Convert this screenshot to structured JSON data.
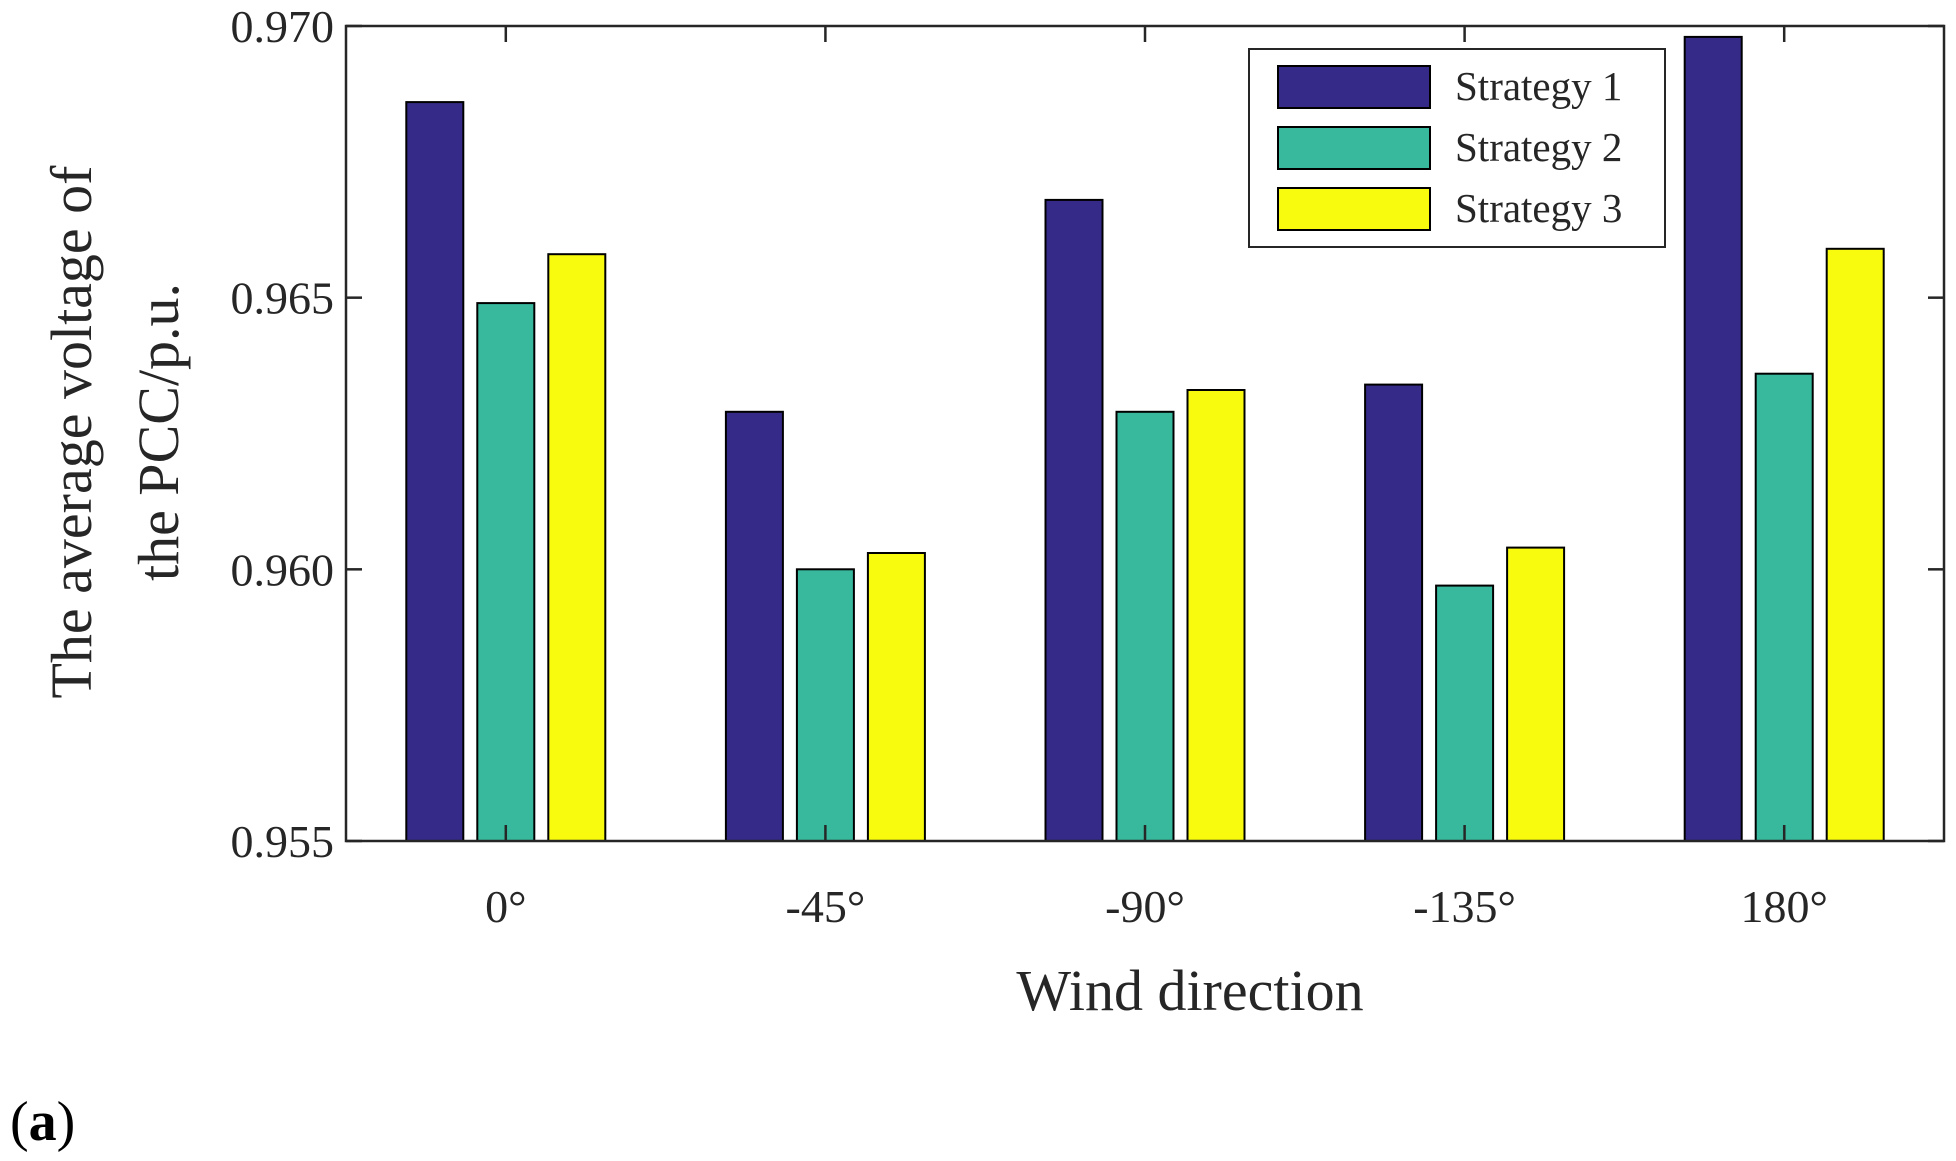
{
  "panel_label": {
    "open": "(",
    "letter": "a",
    "close": ")"
  },
  "chart_data": {
    "type": "bar",
    "title": "",
    "xlabel": "Wind direction",
    "ylabel_line1": "The average voltage of",
    "ylabel_line2": "the PCC/p.u.",
    "categories": [
      "0°",
      "-45°",
      "-90°",
      "-135°",
      "180°"
    ],
    "ylim": [
      0.955,
      0.97
    ],
    "yticks": [
      0.955,
      0.96,
      0.965,
      0.97
    ],
    "ytick_labels": [
      "0.955",
      "0.960",
      "0.965",
      "0.970"
    ],
    "legend_position": "top-right",
    "grid": false,
    "series": [
      {
        "name": "Strategy 1",
        "color": "#352a87",
        "values": [
          0.9686,
          0.9629,
          0.9668,
          0.9634,
          0.9698
        ]
      },
      {
        "name": "Strategy 2",
        "color": "#38b99e",
        "values": [
          0.9649,
          0.96,
          0.9629,
          0.9597,
          0.9636
        ]
      },
      {
        "name": "Strategy 3",
        "color": "#f9fb0e",
        "values": [
          0.9658,
          0.9603,
          0.9633,
          0.9604,
          0.9659
        ]
      }
    ]
  }
}
